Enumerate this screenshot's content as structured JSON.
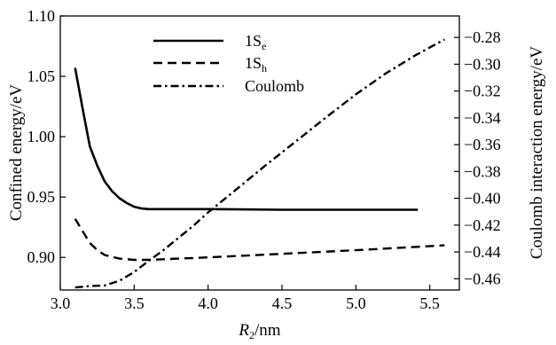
{
  "chart_data": {
    "type": "line",
    "xlabel": {
      "base": "R",
      "sub": "2",
      "suffix": "/nm"
    },
    "ylabel_left": "Confined energy/eV",
    "ylabel_right": "Coulomb interaction energy/eV",
    "xlim": [
      3.0,
      5.7
    ],
    "ylim_left": [
      0.873,
      1.1
    ],
    "ylim_right": [
      -0.4684,
      -0.264
    ],
    "x_ticks": [
      "3.0",
      "3.5",
      "4.0",
      "4.5",
      "5.0",
      "5.5"
    ],
    "y_left_ticks": [
      "0.90",
      "0.95",
      "1.00",
      "1.05",
      "1.10"
    ],
    "y_right_ticks": [
      "-0.46",
      "-0.44",
      "-0.42",
      "-0.40",
      "-0.38",
      "-0.36",
      "-0.34",
      "-0.32",
      "-0.30",
      "-0.28"
    ],
    "grid": false,
    "legend_position": "top-center",
    "series": [
      {
        "name": "1S",
        "name_sub": "e",
        "axis": "left",
        "style": "solid",
        "x": [
          3.1,
          3.15,
          3.2,
          3.25,
          3.3,
          3.35,
          3.4,
          3.45,
          3.5,
          3.55,
          3.6,
          3.8,
          4.0,
          4.5,
          5.0,
          5.42
        ],
        "y": [
          1.057,
          1.024,
          0.992,
          0.976,
          0.963,
          0.955,
          0.949,
          0.945,
          0.942,
          0.9405,
          0.94,
          0.94,
          0.94,
          0.9395,
          0.9395,
          0.9395
        ]
      },
      {
        "name": "1S",
        "name_sub": "h",
        "axis": "left",
        "style": "dashed",
        "x": [
          3.1,
          3.15,
          3.2,
          3.25,
          3.3,
          3.4,
          3.5,
          3.6,
          3.7,
          3.8,
          4.0,
          4.5,
          5.0,
          5.6
        ],
        "y": [
          0.932,
          0.922,
          0.912,
          0.906,
          0.902,
          0.899,
          0.898,
          0.898,
          0.8985,
          0.899,
          0.9,
          0.903,
          0.906,
          0.91
        ]
      },
      {
        "name": "Coulomb",
        "axis": "right",
        "style": "dashdot",
        "x": [
          3.1,
          3.2,
          3.3,
          3.4,
          3.5,
          3.6,
          3.7,
          3.8,
          3.9,
          4.0,
          4.2,
          4.4,
          4.6,
          4.8,
          5.0,
          5.2,
          5.4,
          5.6
        ],
        "y": [
          -0.4665,
          -0.4655,
          -0.465,
          -0.4615,
          -0.455,
          -0.4465,
          -0.4385,
          -0.4295,
          -0.4205,
          -0.4105,
          -0.3925,
          -0.3745,
          -0.357,
          -0.3395,
          -0.3225,
          -0.307,
          -0.2935,
          -0.2815
        ]
      }
    ]
  }
}
